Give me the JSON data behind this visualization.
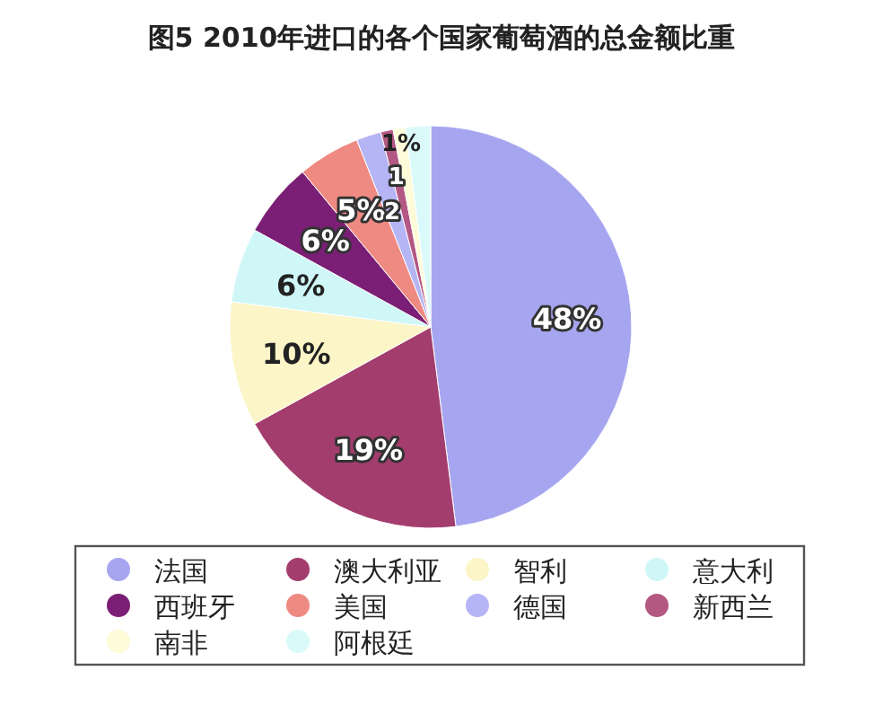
{
  "chart_data": {
    "type": "pie",
    "title": "图5 2010年进口的各个国家葡萄酒的总金额比重",
    "categories": [
      "法国",
      "澳大利亚",
      "智利",
      "意大利",
      "西班牙",
      "美国",
      "德国",
      "新西兰",
      "南非",
      "阿根廷"
    ],
    "values": [
      48,
      19,
      10,
      6,
      6,
      5,
      2,
      1,
      1,
      2
    ],
    "value_labels": [
      "48%",
      "19%",
      "10%",
      "6%",
      "6%",
      "5%",
      "2",
      "1",
      "1%",
      null
    ],
    "colors": [
      "#a6a6f0",
      "#a33d6e",
      "#fbf5c8",
      "#d0f7f7",
      "#7a1f75",
      "#ee8a82",
      "#b5b5f5",
      "#b35783",
      "#fdfbd8",
      "#dafafa"
    ],
    "legend": "bottom"
  }
}
